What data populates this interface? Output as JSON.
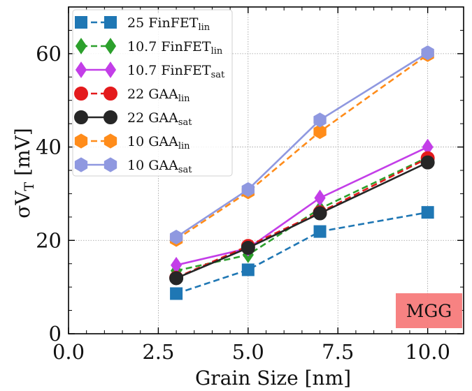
{
  "chart_data": {
    "type": "line",
    "xlabel": "Grain Size [nm]",
    "ylabel": "σV",
    "ylabel_sub": "T",
    "ylabel_unit": " [mV]",
    "xlim": [
      0.0,
      11.0
    ],
    "ylim": [
      0,
      70
    ],
    "x_ticks": [
      0.0,
      2.5,
      5.0,
      7.5,
      10.0
    ],
    "x_tick_labels": [
      "0.0",
      "2.5",
      "5.0",
      "7.5",
      "10.0"
    ],
    "y_ticks": [
      0,
      20,
      40,
      60
    ],
    "y_tick_labels": [
      "0",
      "20",
      "40",
      "60"
    ],
    "grid": true,
    "legend_position": "top-left",
    "x": [
      3,
      5,
      7,
      10
    ],
    "series": [
      {
        "name": "25 FinFET",
        "sub": "lin",
        "color": "#1f77b4",
        "linestyle": "dashed",
        "marker": "square",
        "values": [
          8.6,
          13.7,
          21.9,
          26.0
        ]
      },
      {
        "name": "10.7 FinFET",
        "sub": "lin",
        "color": "#2ca02c",
        "linestyle": "dashed",
        "marker": "diamond",
        "values": [
          13.5,
          16.9,
          26.8,
          37.8
        ]
      },
      {
        "name": "10.7 FinFET",
        "sub": "sat",
        "color": "#c33ee8",
        "linestyle": "solid",
        "marker": "diamond",
        "values": [
          14.7,
          18.3,
          29.1,
          40.0
        ]
      },
      {
        "name": "22 GAA",
        "sub": "lin",
        "color": "#e41a1c",
        "linestyle": "dashed",
        "marker": "circle",
        "values": [
          12.0,
          18.8,
          26.0,
          37.6
        ]
      },
      {
        "name": "22 GAA",
        "sub": "sat",
        "color": "#262626",
        "linestyle": "solid",
        "marker": "circle",
        "values": [
          11.9,
          18.4,
          25.8,
          36.7
        ]
      },
      {
        "name": "10 GAA",
        "sub": "lin",
        "color": "#ff8c1a",
        "linestyle": "dashed",
        "marker": "hexagon",
        "values": [
          20.2,
          30.4,
          43.3,
          59.8
        ]
      },
      {
        "name": "10 GAA",
        "sub": "sat",
        "color": "#8f98e0",
        "linestyle": "solid",
        "marker": "hexagon",
        "values": [
          20.7,
          30.9,
          45.8,
          60.2
        ]
      }
    ],
    "annotation": {
      "text": "MGG",
      "background": "#f77b7b",
      "position": "bottom-right"
    }
  }
}
